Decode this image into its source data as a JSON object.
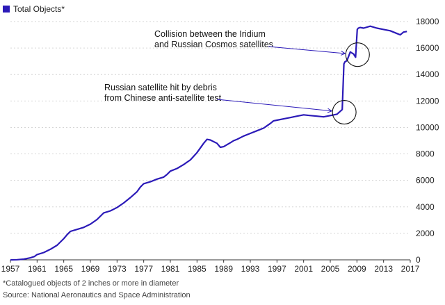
{
  "chart_data": {
    "type": "line",
    "legend": "Total Objects*",
    "legend_position": "top-left",
    "legend_color": "#2b1ab8",
    "line_color": "#2b1ab8",
    "grid": true,
    "xlim": [
      1957,
      2017
    ],
    "ylim": [
      0,
      18000
    ],
    "x_ticks": [
      1957,
      1961,
      1965,
      1969,
      1973,
      1977,
      1981,
      1985,
      1989,
      1993,
      1997,
      2001,
      2005,
      2009,
      2013,
      2017
    ],
    "y_ticks": [
      0,
      2000,
      4000,
      6000,
      8000,
      10000,
      12000,
      14000,
      16000,
      18000
    ],
    "y_tick_labels": [
      "0",
      "2000",
      "4000",
      "6000",
      "8000",
      "10000",
      "12000",
      "14000",
      "16000",
      "18000"
    ],
    "series": [
      {
        "x": [
          1957,
          1958,
          1959,
          1960,
          1960.6,
          1961,
          1962,
          1963,
          1964,
          1965,
          1965.5,
          1966,
          1967,
          1968,
          1969,
          1970,
          1970.5,
          1971,
          1972,
          1973,
          1974,
          1975,
          1976,
          1976.5,
          1977,
          1978,
          1979,
          1980,
          1980.5,
          1981,
          1982,
          1983,
          1984,
          1985,
          1986,
          1986.5,
          1987,
          1988,
          1988.5,
          1989,
          1990,
          1990.5,
          1991,
          1992,
          1993,
          1994,
          1995,
          1996,
          1996.5,
          1997,
          1998,
          1999,
          2000,
          2001,
          2002,
          2003,
          2004,
          2005,
          2006,
          2006.8,
          2007.05,
          2007.2,
          2007.5,
          2008,
          2008.5,
          2008.8,
          2009.05,
          2009.2,
          2009.5,
          2010,
          2011,
          2012,
          2013,
          2014,
          2015,
          2015.5,
          2016,
          2016.5
        ],
        "y": [
          0,
          10,
          50,
          150,
          250,
          400,
          550,
          800,
          1100,
          1600,
          1900,
          2150,
          2300,
          2450,
          2700,
          3050,
          3300,
          3550,
          3700,
          3950,
          4300,
          4700,
          5150,
          5500,
          5750,
          5900,
          6100,
          6250,
          6450,
          6700,
          6900,
          7200,
          7550,
          8100,
          8800,
          9100,
          9050,
          8800,
          8500,
          8550,
          8850,
          9000,
          9100,
          9350,
          9550,
          9750,
          9950,
          10300,
          10500,
          10550,
          10650,
          10750,
          10850,
          10950,
          10900,
          10850,
          10800,
          10900,
          11000,
          11350,
          14800,
          14950,
          15050,
          15700,
          15550,
          15300,
          17400,
          17500,
          17550,
          17500,
          17650,
          17500,
          17400,
          17300,
          17100,
          17000,
          17200,
          17250
        ]
      }
    ],
    "annotations": [
      {
        "lines": [
          "Collision between the Iridium",
          "and Russian Cosmos satellites"
        ],
        "target": [
          2009.1,
          15500
        ]
      },
      {
        "lines": [
          "Russian satellite hit by debris",
          "from Chinese anti-satellite test"
        ],
        "target": [
          2007.1,
          11150
        ]
      }
    ]
  },
  "footnote": "*Catalogued objects of 2 inches or more in diameter",
  "source": "Source: National Aeronautics and Space Administration"
}
